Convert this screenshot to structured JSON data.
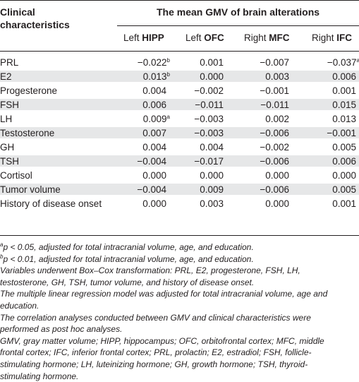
{
  "table": {
    "header": {
      "first_col": "Clinical characteristics",
      "first_col_line1": "Clinical",
      "first_col_line2": "characteristics",
      "group": "The mean GMV of brain alterations",
      "cols": [
        {
          "prefix": "Left ",
          "bold": "HIPP"
        },
        {
          "prefix": "Left ",
          "bold": "OFC"
        },
        {
          "prefix": "Right ",
          "bold": "MFC"
        },
        {
          "prefix": "Right ",
          "bold": "IFC"
        }
      ]
    },
    "rows": [
      {
        "label": "PRL",
        "values": [
          "−0.022",
          "0.001",
          "−0.007",
          "−0.037"
        ],
        "sups": [
          "b",
          "",
          "",
          "a"
        ]
      },
      {
        "label": "E2",
        "values": [
          "0.013",
          "0.000",
          "0.003",
          "0.006"
        ],
        "sups": [
          "b",
          "",
          "",
          ""
        ]
      },
      {
        "label": "Progesterone",
        "values": [
          "0.004",
          "−0.002",
          "−0.001",
          "0.001"
        ],
        "sups": [
          "",
          "",
          "",
          ""
        ]
      },
      {
        "label": "FSH",
        "values": [
          "0.006",
          "−0.011",
          "−0.011",
          "0.015"
        ],
        "sups": [
          "",
          "",
          "",
          ""
        ]
      },
      {
        "label": "LH",
        "values": [
          "0.009",
          "−0.003",
          "0.002",
          "0.013"
        ],
        "sups": [
          "a",
          "",
          "",
          ""
        ]
      },
      {
        "label": "Testosterone",
        "values": [
          "0.007",
          "−0.003",
          "−0.006",
          "−0.001"
        ],
        "sups": [
          "",
          "",
          "",
          ""
        ]
      },
      {
        "label": "GH",
        "values": [
          "0.004",
          "0.004",
          "−0.002",
          "0.005"
        ],
        "sups": [
          "",
          "",
          "",
          ""
        ]
      },
      {
        "label": "TSH",
        "values": [
          "−0.004",
          "−0.017",
          "−0.006",
          "0.006"
        ],
        "sups": [
          "",
          "",
          "",
          ""
        ]
      },
      {
        "label": "Cortisol",
        "values": [
          "0.000",
          "0.000",
          "0.000",
          "0.000"
        ],
        "sups": [
          "",
          "",
          "",
          ""
        ]
      },
      {
        "label": "Tumor volume",
        "values": [
          "−0.004",
          "0.009",
          "−0.006",
          "0.005"
        ],
        "sups": [
          "",
          "",
          "",
          ""
        ]
      },
      {
        "label": "History of disease onset",
        "values": [
          "0.000",
          "0.003",
          "0.000",
          "0.001"
        ],
        "sups": [
          "",
          "",
          "",
          ""
        ]
      }
    ]
  },
  "footnotes": [
    {
      "sup": "a",
      "text": "p < 0.05, adjusted for total intracranial volume, age, and education."
    },
    {
      "sup": "b",
      "text": "p < 0.01, adjusted for total intracranial volume, age, and education."
    },
    {
      "sup": "",
      "text": "Variables underwent Box–Cox transformation: PRL, E2, progesterone, FSH, LH,"
    },
    {
      "sup": "",
      "text": "testosterone, GH, TSH, tumor volume, and history of disease onset."
    },
    {
      "sup": "",
      "text": "The multiple linear regression model was adjusted for total intracranial volume, age and"
    },
    {
      "sup": "",
      "text": "education."
    },
    {
      "sup": "",
      "text": "The correlation analyses conducted between GMV and clinical characteristics were"
    },
    {
      "sup": "",
      "text": "performed as post hoc analyses."
    },
    {
      "sup": "",
      "text": "GMV, gray matter volume; HIPP, hippocampus; OFC, orbitofrontal cortex; MFC, middle"
    },
    {
      "sup": "",
      "text": "frontal cortex; IFC, inferior frontal cortex; PRL, prolactin; E2, estradiol; FSH, follicle-"
    },
    {
      "sup": "",
      "text": "stimulating hormone; LH, luteinizing hormone; GH, growth hormone; TSH, thyroid-"
    },
    {
      "sup": "",
      "text": "stimulating hormone."
    }
  ],
  "colors": {
    "text": "#231f20",
    "stripe": "#e6e7e8",
    "background": "#ffffff"
  }
}
